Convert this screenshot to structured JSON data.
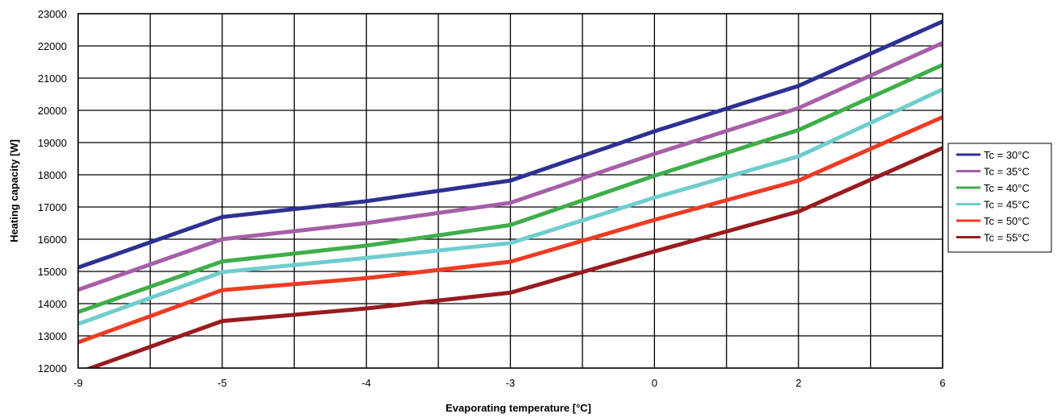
{
  "chart_data": {
    "type": "line",
    "title": "",
    "xlabel": "Evaporating temperature [°C]",
    "ylabel": "Heating capacity [W]",
    "categories": [
      "-9",
      "-5",
      "-4",
      "-3",
      "0",
      "2",
      "6"
    ],
    "ylim": [
      12000,
      23000
    ],
    "y_ticks": [
      12000,
      13000,
      14000,
      15000,
      16000,
      17000,
      18000,
      19000,
      20000,
      21000,
      22000,
      23000
    ],
    "grid": true,
    "legend_position": "right",
    "series": [
      {
        "name": "Tc = 30°C",
        "color": "#2e3192",
        "values": [
          15120,
          16690,
          17180,
          17820,
          19350,
          20760,
          22760
        ]
      },
      {
        "name": "Tc = 35°C",
        "color": "#a65fa8",
        "values": [
          14430,
          16000,
          16500,
          17130,
          18650,
          20070,
          22090
        ]
      },
      {
        "name": "Tc = 40°C",
        "color": "#3fae49",
        "values": [
          13740,
          15310,
          15800,
          16440,
          17970,
          19390,
          21410
        ]
      },
      {
        "name": "Tc = 45°C",
        "color": "#6fcdcd",
        "values": [
          13370,
          14980,
          15420,
          15880,
          17290,
          18570,
          20650
        ]
      },
      {
        "name": "Tc = 50°C",
        "color": "#ef3b24",
        "values": [
          12800,
          14420,
          14790,
          15300,
          16600,
          17820,
          19790
        ]
      },
      {
        "name": "Tc = 55°C",
        "color": "#9a1b1e",
        "values": [
          11860,
          13460,
          13850,
          14340,
          15620,
          16860,
          18830
        ]
      }
    ]
  }
}
